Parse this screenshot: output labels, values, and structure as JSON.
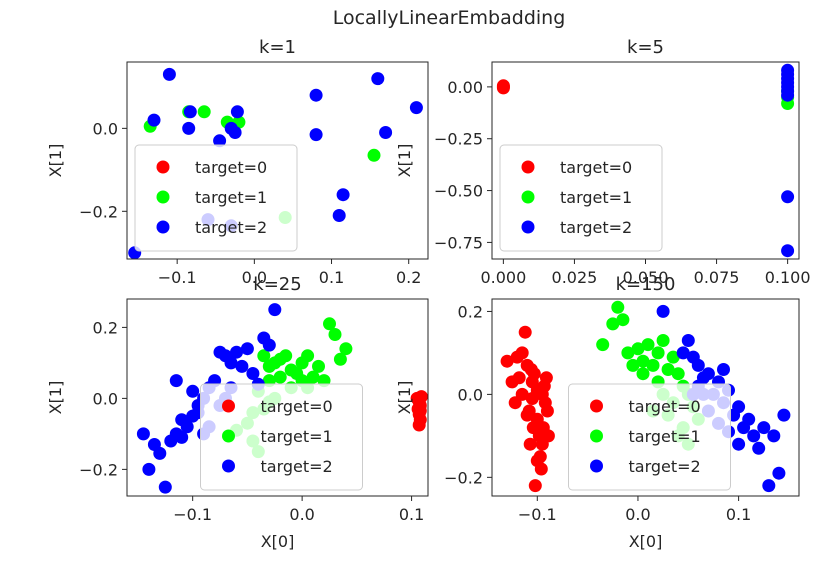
{
  "figure": {
    "suptitle": "LocallyLinearEmbadding"
  },
  "chart_data": [
    {
      "type": "scatter",
      "title": "k=1",
      "xlabel": "",
      "ylabel": "X[1]",
      "xlim": [
        -0.165,
        0.225
      ],
      "ylim": [
        -0.315,
        0.16
      ],
      "xticks": [
        -0.1,
        0.0,
        0.1,
        0.2
      ],
      "xticklabels": [
        "−0.1",
        "0.0",
        "0.1",
        "0.2"
      ],
      "yticks": [
        -0.2,
        0.0
      ],
      "yticklabels": [
        "−0.2",
        "0.0"
      ],
      "legend_position": "lower-left",
      "series": [
        {
          "name": "target=0",
          "color": "#ff0000",
          "points": []
        },
        {
          "name": "target=1",
          "color": "#00ff00",
          "points": [
            [
              -0.135,
              0.005
            ],
            [
              -0.085,
              0.04
            ],
            [
              -0.065,
              0.04
            ],
            [
              -0.035,
              0.015
            ],
            [
              -0.02,
              0.015
            ],
            [
              0.04,
              -0.215
            ],
            [
              0.155,
              -0.065
            ]
          ]
        },
        {
          "name": "target=2",
          "color": "#0000ff",
          "points": [
            [
              -0.155,
              -0.3
            ],
            [
              -0.13,
              0.02
            ],
            [
              -0.11,
              0.13
            ],
            [
              -0.085,
              0.0
            ],
            [
              -0.083,
              0.04
            ],
            [
              -0.06,
              -0.22
            ],
            [
              -0.045,
              -0.03
            ],
            [
              -0.03,
              -0.235
            ],
            [
              -0.03,
              0.0
            ],
            [
              -0.025,
              -0.01
            ],
            [
              -0.022,
              0.04
            ],
            [
              0.08,
              0.08
            ],
            [
              0.08,
              -0.015
            ],
            [
              0.11,
              -0.21
            ],
            [
              0.115,
              -0.16
            ],
            [
              0.16,
              0.12
            ],
            [
              0.17,
              -0.01
            ],
            [
              0.21,
              0.05
            ]
          ]
        }
      ]
    },
    {
      "type": "scatter",
      "title": "k=5",
      "xlabel": "",
      "ylabel": "X[1]",
      "xlim": [
        -0.004,
        0.104
      ],
      "ylim": [
        -0.83,
        0.12
      ],
      "xticks": [
        0.0,
        0.025,
        0.05,
        0.075,
        0.1
      ],
      "xticklabels": [
        "0.000",
        "0.025",
        "0.050",
        "0.075",
        "0.100"
      ],
      "yticks": [
        0.0,
        -0.25,
        -0.5,
        -0.75
      ],
      "yticklabels": [
        "0.00",
        "−0.25",
        "−0.50",
        "−0.75"
      ],
      "legend_position": "lower-left",
      "series": [
        {
          "name": "target=0",
          "color": "#ff0000",
          "points": [
            [
              0.0,
              0.0
            ],
            [
              0.0,
              0.005
            ],
            [
              0.0,
              -0.005
            ]
          ]
        },
        {
          "name": "target=1",
          "color": "#00ff00",
          "points": [
            [
              0.1,
              -0.08
            ],
            [
              0.1,
              -0.05
            ],
            [
              0.1,
              -0.02
            ]
          ]
        },
        {
          "name": "target=2",
          "color": "#0000ff",
          "points": [
            [
              0.1,
              0.08
            ],
            [
              0.1,
              0.06
            ],
            [
              0.1,
              0.04
            ],
            [
              0.1,
              0.02
            ],
            [
              0.1,
              0.0
            ],
            [
              0.1,
              -0.02
            ],
            [
              0.1,
              -0.04
            ],
            [
              0.1,
              -0.53
            ],
            [
              0.1,
              -0.79
            ]
          ]
        }
      ]
    },
    {
      "type": "scatter",
      "title": "k=25",
      "xlabel": "X[0]",
      "ylabel": "X[1]",
      "xlim": [
        -0.16,
        0.115
      ],
      "ylim": [
        -0.275,
        0.28
      ],
      "xticks": [
        -0.1,
        0.0,
        0.1
      ],
      "xticklabels": [
        "−0.1",
        "0.0",
        "0.1"
      ],
      "yticks": [
        -0.2,
        0.0,
        0.2
      ],
      "yticklabels": [
        "−0.2",
        "0.0",
        "0.2"
      ],
      "legend_position": "lower-center",
      "series": [
        {
          "name": "target=0",
          "color": "#ff0000",
          "points": [
            [
              0.105,
              0.0
            ],
            [
              0.107,
              -0.01
            ],
            [
              0.108,
              -0.02
            ],
            [
              0.106,
              -0.03
            ],
            [
              0.107,
              -0.045
            ],
            [
              0.108,
              -0.06
            ],
            [
              0.107,
              -0.075
            ],
            [
              0.109,
              0.005
            ],
            [
              0.108,
              -0.035
            ]
          ]
        },
        {
          "name": "target=1",
          "color": "#00ff00",
          "points": [
            [
              -0.035,
              0.12
            ],
            [
              -0.03,
              0.09
            ],
            [
              -0.025,
              0.1
            ],
            [
              -0.02,
              0.11
            ],
            [
              -0.015,
              0.12
            ],
            [
              -0.01,
              0.08
            ],
            [
              -0.005,
              0.07
            ],
            [
              0.0,
              0.1
            ],
            [
              0.005,
              0.12
            ],
            [
              0.01,
              0.06
            ],
            [
              0.015,
              0.09
            ],
            [
              0.02,
              0.05
            ],
            [
              0.025,
              0.21
            ],
            [
              0.03,
              0.18
            ],
            [
              0.035,
              0.11
            ],
            [
              0.04,
              0.14
            ],
            [
              -0.02,
              0.06
            ],
            [
              -0.01,
              0.03
            ],
            [
              0.0,
              0.05
            ],
            [
              0.005,
              0.03
            ],
            [
              -0.03,
              0.05
            ],
            [
              -0.04,
              0.02
            ],
            [
              -0.045,
              -0.04
            ],
            [
              -0.05,
              -0.07
            ],
            [
              -0.045,
              -0.12
            ],
            [
              -0.04,
              -0.15
            ],
            [
              -0.035,
              -0.03
            ],
            [
              -0.03,
              -0.01
            ],
            [
              -0.025,
              0.0
            ],
            [
              -0.06,
              -0.09
            ]
          ]
        },
        {
          "name": "target=2",
          "color": "#0000ff",
          "points": [
            [
              -0.145,
              -0.1
            ],
            [
              -0.14,
              -0.2
            ],
            [
              -0.135,
              -0.13
            ],
            [
              -0.13,
              -0.155
            ],
            [
              -0.125,
              -0.25
            ],
            [
              -0.12,
              -0.12
            ],
            [
              -0.115,
              -0.1
            ],
            [
              -0.11,
              -0.11
            ],
            [
              -0.105,
              -0.08
            ],
            [
              -0.1,
              -0.05
            ],
            [
              -0.095,
              -0.02
            ],
            [
              -0.09,
              0.0
            ],
            [
              -0.085,
              0.03
            ],
            [
              -0.08,
              0.05
            ],
            [
              -0.075,
              0.13
            ],
            [
              -0.07,
              0.12
            ],
            [
              -0.065,
              0.1
            ],
            [
              -0.06,
              0.13
            ],
            [
              -0.055,
              0.09
            ],
            [
              -0.05,
              0.14
            ],
            [
              -0.045,
              0.07
            ],
            [
              -0.04,
              0.04
            ],
            [
              -0.035,
              0.17
            ],
            [
              -0.03,
              0.15
            ],
            [
              -0.025,
              0.25
            ],
            [
              -0.085,
              -0.08
            ],
            [
              -0.095,
              -0.04
            ],
            [
              -0.075,
              -0.02
            ],
            [
              -0.065,
              0.03
            ],
            [
              -0.1,
              0.02
            ],
            [
              -0.115,
              0.05
            ],
            [
              -0.11,
              -0.06
            ],
            [
              -0.09,
              -0.1
            ],
            [
              -0.07,
              0.0
            ]
          ]
        }
      ]
    },
    {
      "type": "scatter",
      "title": "k=150",
      "xlabel": "X[0]",
      "ylabel": "X[1]",
      "xlim": [
        -0.145,
        0.16
      ],
      "ylim": [
        -0.245,
        0.23
      ],
      "xticks": [
        -0.1,
        0.0,
        0.1
      ],
      "xticklabels": [
        "−0.1",
        "0.0",
        "0.1"
      ],
      "yticks": [
        -0.2,
        0.0,
        0.2
      ],
      "yticklabels": [
        "−0.2",
        "0.0",
        "0.2"
      ],
      "legend_position": "lower-center",
      "series": [
        {
          "name": "target=0",
          "color": "#ff0000",
          "points": [
            [
              -0.13,
              0.08
            ],
            [
              -0.125,
              0.03
            ],
            [
              -0.122,
              -0.02
            ],
            [
              -0.12,
              0.09
            ],
            [
              -0.115,
              0.0
            ],
            [
              -0.112,
              0.15
            ],
            [
              -0.11,
              0.07
            ],
            [
              -0.108,
              -0.04
            ],
            [
              -0.105,
              0.03
            ],
            [
              -0.103,
              0.05
            ],
            [
              -0.1,
              -0.06
            ],
            [
              -0.098,
              -0.1
            ],
            [
              -0.097,
              -0.15
            ],
            [
              -0.096,
              -0.18
            ],
            [
              -0.095,
              -0.12
            ],
            [
              -0.094,
              -0.08
            ],
            [
              -0.093,
              0.02
            ],
            [
              -0.092,
              -0.02
            ],
            [
              -0.095,
              0.0
            ],
            [
              -0.1,
              0.01
            ],
            [
              -0.105,
              -0.01
            ],
            [
              -0.11,
              -0.05
            ],
            [
              -0.107,
              -0.12
            ],
            [
              -0.102,
              -0.22
            ],
            [
              -0.1,
              -0.16
            ],
            [
              -0.09,
              -0.04
            ],
            [
              -0.089,
              -0.1
            ],
            [
              -0.091,
              0.04
            ],
            [
              -0.106,
              0.06
            ],
            [
              -0.115,
              0.1
            ],
            [
              -0.118,
              0.04
            ],
            [
              -0.104,
              -0.08
            ]
          ]
        },
        {
          "name": "target=1",
          "color": "#00ff00",
          "points": [
            [
              -0.035,
              0.12
            ],
            [
              -0.025,
              0.17
            ],
            [
              -0.02,
              0.21
            ],
            [
              -0.015,
              0.18
            ],
            [
              -0.01,
              0.1
            ],
            [
              0.0,
              0.11
            ],
            [
              0.005,
              0.08
            ],
            [
              0.01,
              0.12
            ],
            [
              0.015,
              0.07
            ],
            [
              0.02,
              0.1
            ],
            [
              0.025,
              0.13
            ],
            [
              0.03,
              0.06
            ],
            [
              0.035,
              0.09
            ],
            [
              0.04,
              0.05
            ],
            [
              0.045,
              0.02
            ],
            [
              0.05,
              0.0
            ],
            [
              0.055,
              -0.03
            ],
            [
              0.06,
              -0.06
            ],
            [
              0.035,
              -0.02
            ],
            [
              0.03,
              -0.05
            ],
            [
              0.02,
              0.03
            ],
            [
              0.015,
              -0.04
            ],
            [
              0.045,
              -0.08
            ],
            [
              0.04,
              -0.1
            ],
            [
              0.05,
              -0.12
            ],
            [
              0.005,
              0.05
            ],
            [
              -0.005,
              0.07
            ],
            [
              0.025,
              0.0
            ]
          ]
        },
        {
          "name": "target=2",
          "color": "#0000ff",
          "points": [
            [
              0.025,
              0.2
            ],
            [
              0.045,
              0.1
            ],
            [
              0.05,
              0.13
            ],
            [
              0.055,
              0.09
            ],
            [
              0.06,
              0.07
            ],
            [
              0.065,
              0.04
            ],
            [
              0.07,
              0.05
            ],
            [
              0.075,
              0.0
            ],
            [
              0.08,
              0.03
            ],
            [
              0.085,
              -0.02
            ],
            [
              0.09,
              0.01
            ],
            [
              0.095,
              -0.05
            ],
            [
              0.1,
              -0.03
            ],
            [
              0.105,
              -0.08
            ],
            [
              0.11,
              -0.06
            ],
            [
              0.115,
              -0.1
            ],
            [
              0.12,
              -0.13
            ],
            [
              0.125,
              -0.08
            ],
            [
              0.13,
              -0.22
            ],
            [
              0.135,
              -0.1
            ],
            [
              0.14,
              -0.19
            ],
            [
              0.145,
              -0.05
            ],
            [
              0.1,
              -0.12
            ],
            [
              0.09,
              -0.09
            ],
            [
              0.08,
              -0.07
            ],
            [
              0.07,
              -0.04
            ],
            [
              0.065,
              0.0
            ],
            [
              0.06,
              0.02
            ],
            [
              0.055,
              0.0
            ],
            [
              0.085,
              0.06
            ]
          ]
        }
      ]
    }
  ]
}
